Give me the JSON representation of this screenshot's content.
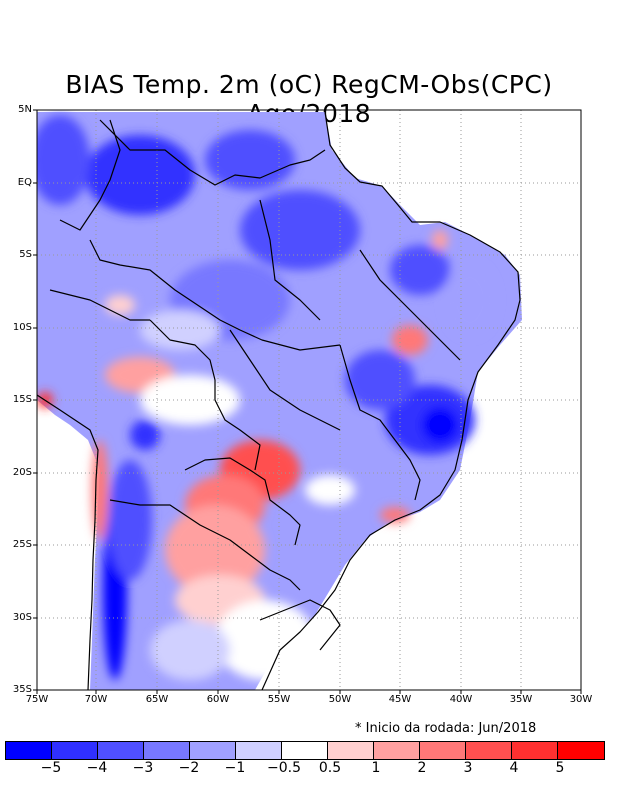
{
  "title": "BIAS Temp. 2m (oC) RegCM-Obs(CPC) Ago/2018",
  "latitude_labels": [
    "5N",
    "EQ",
    "5S",
    "10S",
    "15S",
    "20S",
    "25S",
    "30S",
    "35S"
  ],
  "longitude_labels": [
    "75W",
    "70W",
    "65W",
    "60W",
    "55W",
    "50W",
    "45W",
    "40W",
    "35W",
    "30W"
  ],
  "note": "* Inicio da rodada: Jun/2018",
  "colorbar": {
    "colors": [
      "#0000ff",
      "#3030ff",
      "#5050ff",
      "#7878ff",
      "#a0a0ff",
      "#d0d0ff",
      "#ffffff",
      "#ffd0d0",
      "#ffa0a0",
      "#ff7878",
      "#ff5050",
      "#ff3030",
      "#ff0000"
    ],
    "labels": [
      "−5",
      "−4",
      "−3",
      "−2",
      "−1",
      "−0.5",
      "0.5",
      "1",
      "2",
      "3",
      "4",
      "5"
    ]
  },
  "colors": {
    "ocean": "#ffffff",
    "land_base": "#a0a0ff",
    "border": "#000000",
    "grid": "#9a9a9a"
  }
}
